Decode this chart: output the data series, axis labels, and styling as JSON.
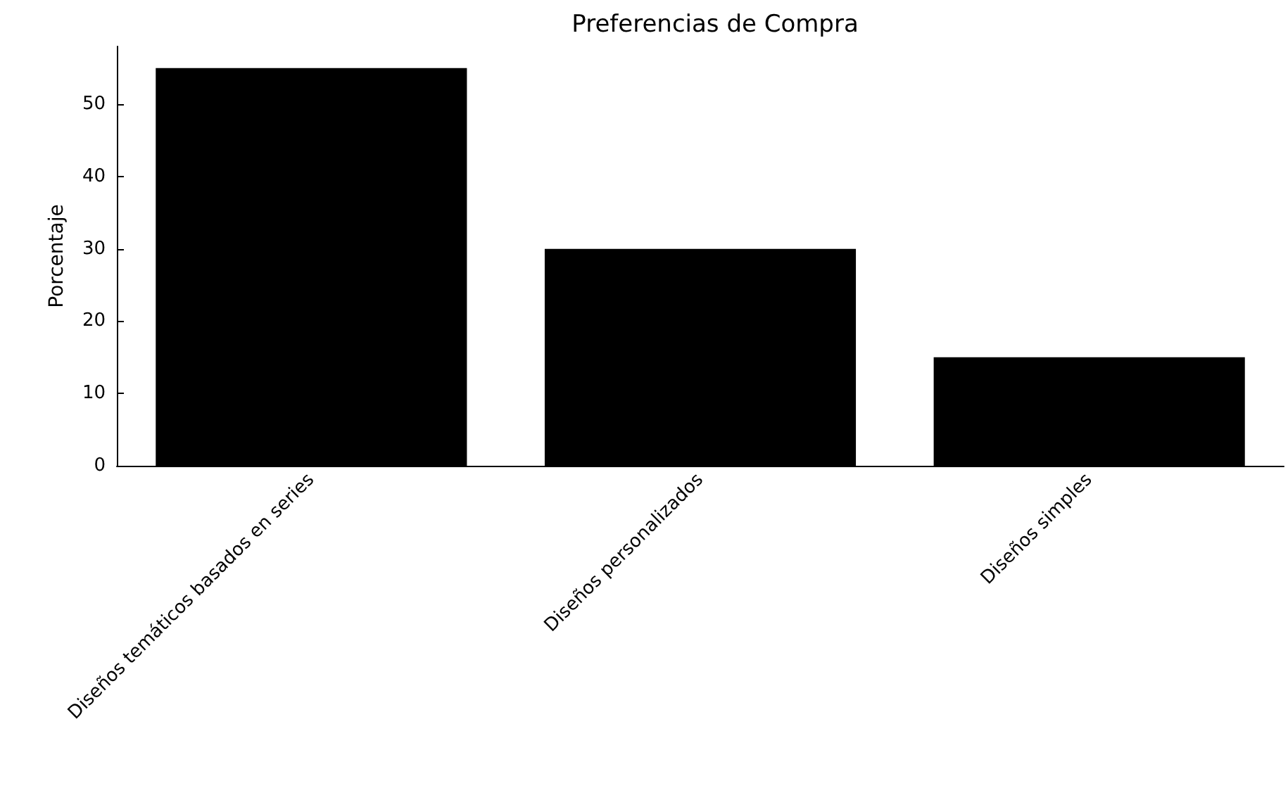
{
  "chart_data": {
    "type": "bar",
    "title": "Preferencias de Compra",
    "ylabel": "Porcentaje",
    "categories": [
      "Diseños temáticos basados en series",
      "Diseños personalizados",
      "Diseños simples"
    ],
    "values": [
      55,
      30,
      15
    ],
    "color": "#000000",
    "ylim": [
      0,
      58
    ],
    "yticks": [
      0,
      10,
      20,
      30,
      40,
      50
    ]
  }
}
